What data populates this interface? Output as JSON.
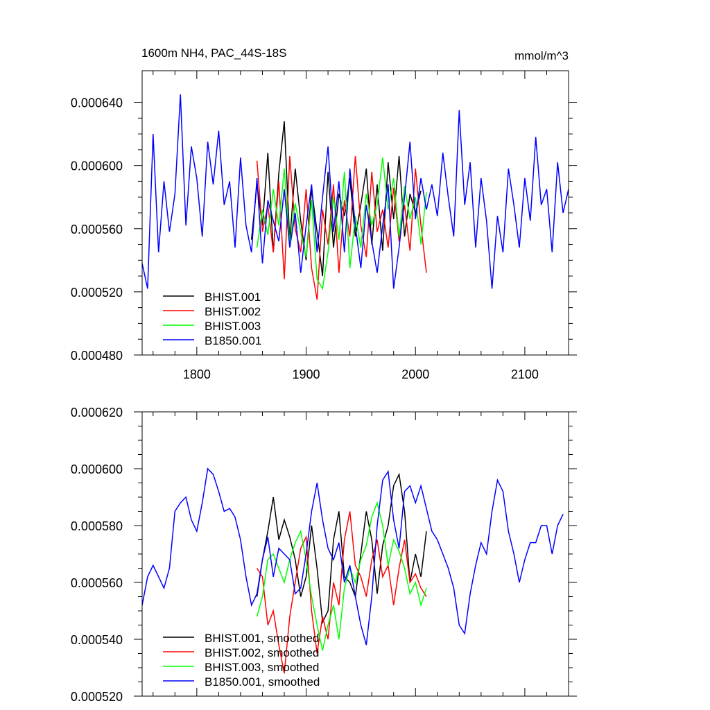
{
  "chart_data": [
    {
      "type": "line",
      "title": "1600m NH4, PAC_44S-18S",
      "units": "mmol/m^3",
      "xlim": [
        1750,
        2140
      ],
      "ylim": [
        0.00048,
        0.00066
      ],
      "xticks": [
        1800,
        1900,
        2000,
        2100
      ],
      "xtick_labels": [
        "1800",
        "1900",
        "2000",
        "2100"
      ],
      "yticks": [
        0.00048,
        0.00052,
        0.00056,
        0.0006,
        0.00064
      ],
      "ytick_labels": [
        "0.000480",
        "0.000520",
        "0.000560",
        "0.000600",
        "0.000640"
      ],
      "legend_position": "bottom-left",
      "series": [
        {
          "name": "BHIST.001",
          "color": "#000000",
          "x": [
            1850,
            1855,
            1860,
            1865,
            1870,
            1875,
            1880,
            1885,
            1890,
            1895,
            1900,
            1905,
            1910,
            1915,
            1920,
            1925,
            1930,
            1935,
            1940,
            1945,
            1950,
            1955,
            1960,
            1965,
            1970,
            1975,
            1980,
            1985,
            1990,
            1995,
            2000,
            2005
          ],
          "y": [
            0.000553,
            0.000588,
            0.000562,
            0.000608,
            0.000545,
            0.000595,
            0.000628,
            0.000552,
            0.000598,
            0.000565,
            0.00054,
            0.000585,
            0.000558,
            0.00053,
            0.000596,
            0.000548,
            0.000582,
            0.000568,
            0.000592,
            0.000555,
            0.000575,
            0.000598,
            0.00055,
            0.000588,
            0.000546,
            0.000602,
            0.000566,
            0.000606,
            0.000555,
            0.000582,
            0.00057,
            0.000584
          ]
        },
        {
          "name": "BHIST.002",
          "color": "#ff0000",
          "x": [
            1855,
            1860,
            1865,
            1870,
            1875,
            1880,
            1885,
            1890,
            1895,
            1900,
            1905,
            1910,
            1915,
            1920,
            1925,
            1930,
            1935,
            1940,
            1945,
            1950,
            1955,
            1960,
            1965,
            1970,
            1975,
            1980,
            1985,
            1990,
            1995,
            2000,
            2005,
            2010
          ],
          "y": [
            0.000603,
            0.000558,
            0.000575,
            0.000545,
            0.00059,
            0.000528,
            0.000606,
            0.00056,
            0.000545,
            0.000585,
            0.000535,
            0.000515,
            0.000572,
            0.00055,
            0.000588,
            0.000532,
            0.000578,
            0.000555,
            0.000606,
            0.000562,
            0.000542,
            0.000596,
            0.000558,
            0.000572,
            0.000548,
            0.000586,
            0.000552,
            0.000575,
            0.000546,
            0.000598,
            0.000562,
            0.000532
          ]
        },
        {
          "name": "BHIST.003",
          "color": "#00ff00",
          "x": [
            1855,
            1860,
            1865,
            1870,
            1875,
            1880,
            1885,
            1890,
            1895,
            1900,
            1905,
            1910,
            1915,
            1920,
            1925,
            1930,
            1935,
            1940,
            1945,
            1950,
            1955,
            1960,
            1965,
            1970,
            1975,
            1980,
            1985,
            1990,
            1995,
            2000,
            2005,
            2010
          ],
          "y": [
            0.000548,
            0.000572,
            0.000556,
            0.000585,
            0.000562,
            0.000598,
            0.00055,
            0.000576,
            0.000558,
            0.000542,
            0.000578,
            0.000528,
            0.000522,
            0.000545,
            0.00058,
            0.000553,
            0.000596,
            0.000535,
            0.000568,
            0.000548,
            0.000582,
            0.000562,
            0.000575,
            0.000605,
            0.000572,
            0.000592,
            0.000555,
            0.000587,
            0.000566,
            0.00058,
            0.00055,
            0.000583
          ]
        },
        {
          "name": "B1850.001",
          "color": "#0000ff",
          "x": [
            1750,
            1755,
            1760,
            1765,
            1770,
            1775,
            1780,
            1785,
            1790,
            1795,
            1800,
            1805,
            1810,
            1815,
            1820,
            1825,
            1830,
            1835,
            1840,
            1845,
            1850,
            1855,
            1860,
            1865,
            1870,
            1875,
            1880,
            1885,
            1890,
            1895,
            1900,
            1905,
            1910,
            1915,
            1920,
            1925,
            1930,
            1935,
            1940,
            1945,
            1950,
            1955,
            1960,
            1965,
            1970,
            1975,
            1980,
            1985,
            1990,
            1995,
            2000,
            2005,
            2010,
            2015,
            2020,
            2025,
            2030,
            2035,
            2040,
            2045,
            2050,
            2055,
            2060,
            2065,
            2070,
            2075,
            2080,
            2085,
            2090,
            2095,
            2100,
            2105,
            2110,
            2115,
            2120,
            2125,
            2130,
            2135,
            2140
          ],
          "y": [
            0.000538,
            0.000522,
            0.00062,
            0.000545,
            0.00059,
            0.000558,
            0.000582,
            0.000645,
            0.000562,
            0.000612,
            0.000592,
            0.000555,
            0.000615,
            0.000588,
            0.000622,
            0.000575,
            0.00059,
            0.000548,
            0.000605,
            0.000562,
            0.000545,
            0.000592,
            0.000538,
            0.000578,
            0.000565,
            0.000552,
            0.000585,
            0.000548,
            0.00057,
            0.000532,
            0.000562,
            0.000588,
            0.000545,
            0.00058,
            0.000612,
            0.000558,
            0.00059,
            0.000545,
            0.000598,
            0.000562,
            0.000535,
            0.000575,
            0.000552,
            0.000532,
            0.000562,
            0.000588,
            0.000522,
            0.000548,
            0.00058,
            0.000615,
            0.000566,
            0.000592,
            0.000572,
            0.000588,
            0.000568,
            0.000608,
            0.00058,
            0.000555,
            0.000635,
            0.000575,
            0.000602,
            0.000548,
            0.000592,
            0.000565,
            0.000522,
            0.000568,
            0.000545,
            0.000598,
            0.000575,
            0.000548,
            0.000592,
            0.000565,
            0.000618,
            0.000575,
            0.000585,
            0.000545,
            0.000602,
            0.00057,
            0.000585
          ]
        }
      ]
    },
    {
      "type": "line",
      "xlim": [
        1750,
        2140
      ],
      "ylim": [
        0.00052,
        0.00062
      ],
      "xticks": [
        1800,
        1900,
        2000,
        2100
      ],
      "yticks": [
        0.00052,
        0.00054,
        0.00056,
        0.00058,
        0.0006,
        0.00062
      ],
      "ytick_labels": [
        "0.000520",
        "0.000540",
        "0.000560",
        "0.000580",
        "0.000600",
        "0.000620"
      ],
      "legend_position": "bottom-left",
      "series": [
        {
          "name": "BHIST.001, smoothed",
          "color": "#000000",
          "x": [
            1855,
            1860,
            1865,
            1870,
            1875,
            1880,
            1885,
            1890,
            1895,
            1900,
            1905,
            1910,
            1915,
            1920,
            1925,
            1930,
            1935,
            1940,
            1945,
            1950,
            1955,
            1960,
            1965,
            1970,
            1975,
            1980,
            1985,
            1990,
            1995,
            2000,
            2005,
            2010
          ],
          "y": [
            0.000555,
            0.000568,
            0.000578,
            0.00059,
            0.000575,
            0.000582,
            0.000576,
            0.000568,
            0.000555,
            0.000562,
            0.00058,
            0.000565,
            0.000546,
            0.00055,
            0.000575,
            0.000585,
            0.000562,
            0.00056,
            0.000555,
            0.00057,
            0.000585,
            0.000575,
            0.000556,
            0.000573,
            0.00058,
            0.000594,
            0.000598,
            0.000585,
            0.00056,
            0.00057,
            0.000562,
            0.000578
          ]
        },
        {
          "name": "BHIST.002, smoothed",
          "color": "#ff0000",
          "x": [
            1855,
            1860,
            1865,
            1870,
            1875,
            1880,
            1885,
            1890,
            1895,
            1900,
            1905,
            1910,
            1915,
            1920,
            1925,
            1930,
            1935,
            1940,
            1945,
            1950,
            1955,
            1960,
            1965,
            1970,
            1975,
            1980,
            1985,
            1990,
            1995,
            2000,
            2005,
            2010
          ],
          "y": [
            0.000565,
            0.000562,
            0.000545,
            0.00055,
            0.000538,
            0.000528,
            0.000548,
            0.00056,
            0.000572,
            0.000576,
            0.00055,
            0.000535,
            0.000548,
            0.00054,
            0.00056,
            0.000552,
            0.000575,
            0.000585,
            0.000566,
            0.000562,
            0.000555,
            0.000568,
            0.000575,
            0.000562,
            0.000566,
            0.000552,
            0.000565,
            0.000575,
            0.00056,
            0.000563,
            0.000558,
            0.000555
          ]
        },
        {
          "name": "BHIST.003, smoothed",
          "color": "#00ff00",
          "x": [
            1855,
            1860,
            1865,
            1870,
            1875,
            1880,
            1885,
            1890,
            1895,
            1900,
            1905,
            1910,
            1915,
            1920,
            1925,
            1930,
            1935,
            1940,
            1945,
            1950,
            1955,
            1960,
            1965,
            1970,
            1975,
            1980,
            1985,
            1990,
            1995,
            2000,
            2005,
            2010
          ],
          "y": [
            0.000548,
            0.000555,
            0.000568,
            0.00057,
            0.000565,
            0.00056,
            0.000568,
            0.000574,
            0.000578,
            0.000568,
            0.000555,
            0.000545,
            0.000536,
            0.000545,
            0.000552,
            0.00054,
            0.000558,
            0.000565,
            0.00056,
            0.000568,
            0.000573,
            0.000583,
            0.000588,
            0.00058,
            0.000566,
            0.000575,
            0.000571,
            0.000565,
            0.000556,
            0.00056,
            0.000552,
            0.000558
          ]
        },
        {
          "name": "B1850.001, smoothed",
          "color": "#0000ff",
          "x": [
            1750,
            1755,
            1760,
            1765,
            1770,
            1775,
            1780,
            1785,
            1790,
            1795,
            1800,
            1805,
            1810,
            1815,
            1820,
            1825,
            1830,
            1835,
            1840,
            1845,
            1850,
            1855,
            1860,
            1865,
            1870,
            1875,
            1880,
            1885,
            1890,
            1895,
            1900,
            1905,
            1910,
            1915,
            1920,
            1925,
            1930,
            1935,
            1940,
            1945,
            1950,
            1955,
            1960,
            1965,
            1970,
            1975,
            1980,
            1985,
            1990,
            1995,
            2000,
            2005,
            2010,
            2015,
            2020,
            2025,
            2030,
            2035,
            2040,
            2045,
            2050,
            2055,
            2060,
            2065,
            2070,
            2075,
            2080,
            2085,
            2090,
            2095,
            2100,
            2105,
            2110,
            2115,
            2120,
            2125,
            2130,
            2135
          ],
          "y": [
            0.000552,
            0.000562,
            0.000566,
            0.000562,
            0.000558,
            0.000565,
            0.000585,
            0.000588,
            0.00059,
            0.000582,
            0.000578,
            0.000588,
            0.0006,
            0.000598,
            0.000592,
            0.000585,
            0.000586,
            0.000583,
            0.000575,
            0.000562,
            0.000552,
            0.000556,
            0.000568,
            0.000576,
            0.000562,
            0.000572,
            0.00057,
            0.000568,
            0.000556,
            0.000558,
            0.00057,
            0.000585,
            0.000595,
            0.000582,
            0.000572,
            0.000568,
            0.000574,
            0.00056,
            0.000566,
            0.000555,
            0.000545,
            0.000538,
            0.000555,
            0.00058,
            0.000596,
            0.000599,
            0.000582,
            0.000572,
            0.000592,
            0.000594,
            0.000588,
            0.000594,
            0.000586,
            0.000578,
            0.000575,
            0.00057,
            0.000565,
            0.000558,
            0.000545,
            0.000542,
            0.000556,
            0.000566,
            0.000574,
            0.00057,
            0.000585,
            0.000596,
            0.000592,
            0.000578,
            0.00057,
            0.00056,
            0.000568,
            0.000574,
            0.000574,
            0.00058,
            0.00058,
            0.00057,
            0.00058,
            0.000584
          ]
        }
      ]
    }
  ]
}
